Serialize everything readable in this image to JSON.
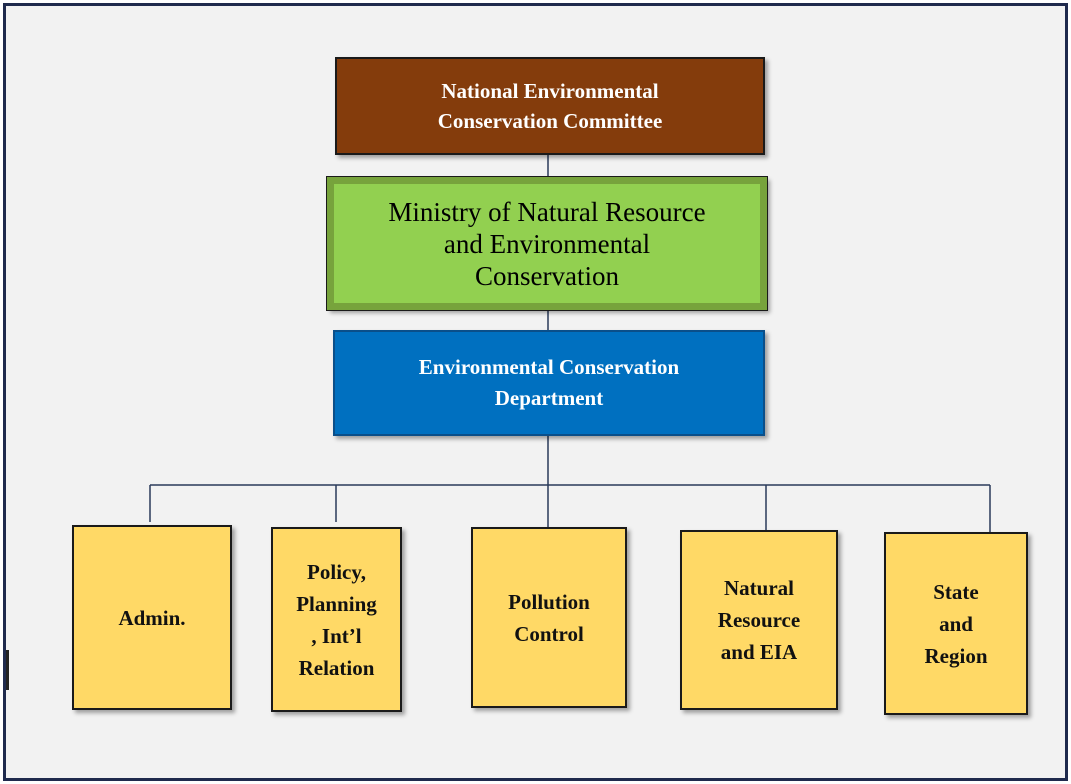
{
  "nodes": [
    {
      "label": "National Environmental\nConservation Committee"
    },
    {
      "label": "Ministry of Natural Resource\nand Environmental\nConservation"
    },
    {
      "label": "Environmental Conservation\nDepartment"
    },
    {
      "label": "Admin."
    },
    {
      "label": "Policy,\nPlanning\n, Int’l\nRelation"
    },
    {
      "label": "Pollution\nControl"
    },
    {
      "label": "Natural\nResource\nand EIA"
    },
    {
      "label": "State\nand\nRegion"
    }
  ]
}
